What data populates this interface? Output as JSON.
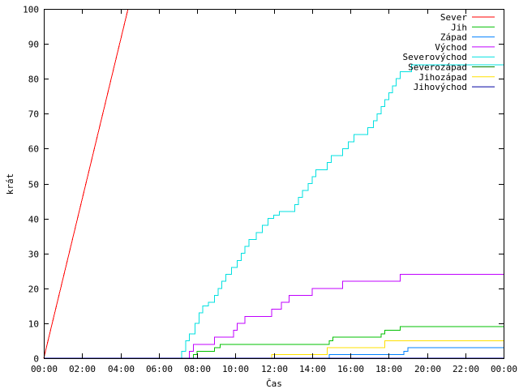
{
  "chart_data": {
    "type": "line",
    "title": "",
    "xlabel": "Čas",
    "ylabel": "krát",
    "xlim": [
      0,
      24
    ],
    "ylim": [
      0,
      100
    ],
    "x_ticks": [
      0,
      2,
      4,
      6,
      8,
      10,
      12,
      14,
      16,
      18,
      20,
      22,
      24
    ],
    "x_tick_labels": [
      "00:00",
      "02:00",
      "04:00",
      "06:00",
      "08:00",
      "10:00",
      "12:00",
      "14:00",
      "16:00",
      "18:00",
      "20:00",
      "22:00",
      "00:00"
    ],
    "y_ticks": [
      0,
      10,
      20,
      30,
      40,
      50,
      60,
      70,
      80,
      90,
      100
    ],
    "y_tick_labels": [
      "0",
      "10",
      "20",
      "30",
      "40",
      "50",
      "60",
      "70",
      "80",
      "90",
      "100"
    ],
    "grid": false,
    "legend_position": "top-right",
    "series": [
      {
        "name": "Sever",
        "color": "#ff0000",
        "points": [
          [
            0,
            0
          ],
          [
            4.4,
            100
          ]
        ]
      },
      {
        "name": "Jih",
        "color": "#00c000",
        "points": [
          [
            0,
            0
          ],
          [
            7.8,
            0
          ],
          [
            7.8,
            1
          ],
          [
            8.0,
            1
          ],
          [
            8.0,
            2
          ],
          [
            8.9,
            2
          ],
          [
            8.9,
            3
          ],
          [
            9.2,
            3
          ],
          [
            9.2,
            4
          ],
          [
            14.9,
            4
          ],
          [
            14.9,
            5
          ],
          [
            15.1,
            5
          ],
          [
            15.1,
            6
          ],
          [
            17.6,
            6
          ],
          [
            17.6,
            7
          ],
          [
            17.8,
            7
          ],
          [
            17.8,
            8
          ],
          [
            18.6,
            8
          ],
          [
            18.6,
            9
          ],
          [
            24,
            9
          ]
        ]
      },
      {
        "name": "Západ",
        "color": "#0080ff",
        "points": [
          [
            0,
            0
          ],
          [
            14.9,
            0
          ],
          [
            14.9,
            1
          ],
          [
            18.8,
            1
          ],
          [
            18.8,
            2
          ],
          [
            19.0,
            2
          ],
          [
            19.0,
            3
          ],
          [
            24,
            3
          ]
        ]
      },
      {
        "name": "Východ",
        "color": "#c000ff",
        "points": [
          [
            0,
            0
          ],
          [
            7.6,
            0
          ],
          [
            7.6,
            2
          ],
          [
            7.8,
            2
          ],
          [
            7.8,
            4
          ],
          [
            8.9,
            4
          ],
          [
            8.9,
            6
          ],
          [
            9.9,
            6
          ],
          [
            9.9,
            8
          ],
          [
            10.1,
            8
          ],
          [
            10.1,
            10
          ],
          [
            10.5,
            10
          ],
          [
            10.5,
            12
          ],
          [
            11.9,
            12
          ],
          [
            11.9,
            14
          ],
          [
            12.4,
            14
          ],
          [
            12.4,
            16
          ],
          [
            12.8,
            16
          ],
          [
            12.8,
            18
          ],
          [
            14.0,
            18
          ],
          [
            14.0,
            20
          ],
          [
            15.6,
            20
          ],
          [
            15.6,
            22
          ],
          [
            18.6,
            22
          ],
          [
            18.6,
            24
          ],
          [
            24,
            24
          ]
        ]
      },
      {
        "name": "Severovýchod",
        "color": "#00e0e0",
        "points": [
          [
            0,
            0
          ],
          [
            7.2,
            0
          ],
          [
            7.2,
            2
          ],
          [
            7.4,
            2
          ],
          [
            7.4,
            5
          ],
          [
            7.6,
            5
          ],
          [
            7.6,
            7
          ],
          [
            7.9,
            7
          ],
          [
            7.9,
            10
          ],
          [
            8.1,
            10
          ],
          [
            8.1,
            13
          ],
          [
            8.3,
            13
          ],
          [
            8.3,
            15
          ],
          [
            8.6,
            15
          ],
          [
            8.6,
            16
          ],
          [
            8.9,
            16
          ],
          [
            8.9,
            18
          ],
          [
            9.1,
            18
          ],
          [
            9.1,
            20
          ],
          [
            9.3,
            20
          ],
          [
            9.3,
            22
          ],
          [
            9.5,
            22
          ],
          [
            9.5,
            24
          ],
          [
            9.8,
            24
          ],
          [
            9.8,
            26
          ],
          [
            10.1,
            26
          ],
          [
            10.1,
            28
          ],
          [
            10.3,
            28
          ],
          [
            10.3,
            30
          ],
          [
            10.5,
            30
          ],
          [
            10.5,
            32
          ],
          [
            10.7,
            32
          ],
          [
            10.7,
            34
          ],
          [
            11.1,
            34
          ],
          [
            11.1,
            36
          ],
          [
            11.4,
            36
          ],
          [
            11.4,
            38
          ],
          [
            11.7,
            38
          ],
          [
            11.7,
            40
          ],
          [
            12.0,
            40
          ],
          [
            12.0,
            41
          ],
          [
            12.3,
            41
          ],
          [
            12.3,
            42
          ],
          [
            13.1,
            42
          ],
          [
            13.1,
            44
          ],
          [
            13.3,
            44
          ],
          [
            13.3,
            46
          ],
          [
            13.5,
            46
          ],
          [
            13.5,
            48
          ],
          [
            13.8,
            48
          ],
          [
            13.8,
            50
          ],
          [
            14.0,
            50
          ],
          [
            14.0,
            52
          ],
          [
            14.2,
            52
          ],
          [
            14.2,
            54
          ],
          [
            14.8,
            54
          ],
          [
            14.8,
            56
          ],
          [
            15.0,
            56
          ],
          [
            15.0,
            58
          ],
          [
            15.6,
            58
          ],
          [
            15.6,
            60
          ],
          [
            15.9,
            60
          ],
          [
            15.9,
            62
          ],
          [
            16.2,
            62
          ],
          [
            16.2,
            64
          ],
          [
            16.9,
            64
          ],
          [
            16.9,
            66
          ],
          [
            17.2,
            66
          ],
          [
            17.2,
            68
          ],
          [
            17.4,
            68
          ],
          [
            17.4,
            70
          ],
          [
            17.6,
            70
          ],
          [
            17.6,
            72
          ],
          [
            17.8,
            72
          ],
          [
            17.8,
            74
          ],
          [
            18.0,
            74
          ],
          [
            18.0,
            76
          ],
          [
            18.2,
            76
          ],
          [
            18.2,
            78
          ],
          [
            18.4,
            78
          ],
          [
            18.4,
            80
          ],
          [
            18.6,
            80
          ],
          [
            18.6,
            82
          ],
          [
            19.2,
            82
          ],
          [
            19.2,
            84
          ],
          [
            24,
            84
          ]
        ]
      },
      {
        "name": "Severozápad",
        "color": "#008000",
        "points": [
          [
            0,
            0
          ],
          [
            24,
            0
          ]
        ]
      },
      {
        "name": "Jihozápad",
        "color": "#ffe000",
        "points": [
          [
            0,
            0
          ],
          [
            11.9,
            0
          ],
          [
            11.9,
            1
          ],
          [
            14.8,
            1
          ],
          [
            14.8,
            3
          ],
          [
            17.8,
            3
          ],
          [
            17.8,
            5
          ],
          [
            24,
            5
          ]
        ]
      },
      {
        "name": "Jihovýchod",
        "color": "#0000a0",
        "points": [
          [
            0,
            0
          ],
          [
            24,
            0
          ]
        ]
      }
    ]
  }
}
